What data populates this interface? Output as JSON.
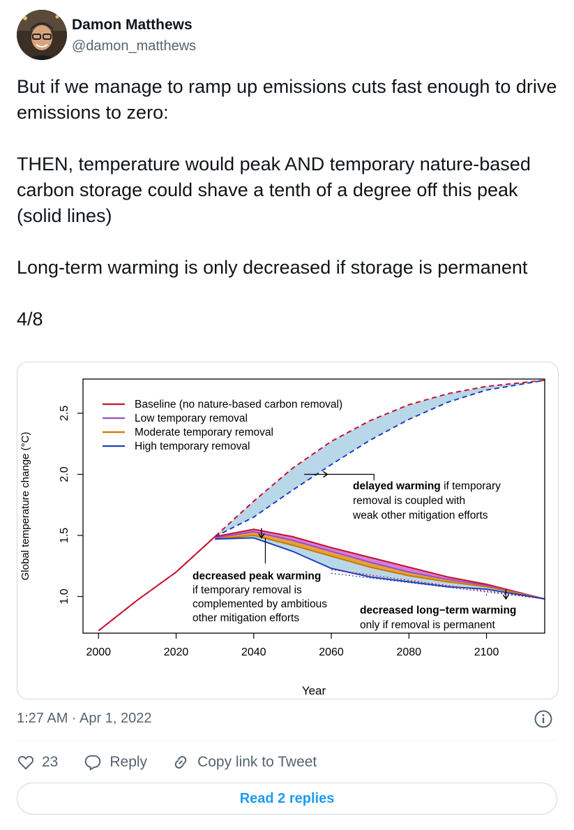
{
  "author": {
    "name": "Damon Matthews",
    "handle": "@damon_matthews"
  },
  "tweet": {
    "text": "But if we manage to ramp up emissions cuts fast enough to drive emissions to zero:\n\nTHEN, temperature would peak AND temporary nature-based carbon storage could shave a tenth of a degree off this peak (solid lines)\n\nLong-term warming is only decreased if storage is permanent\n\n4/8",
    "timestamp": "1:27 AM · Apr 1, 2022"
  },
  "actions": {
    "likes_count": "23",
    "reply_label": "Reply",
    "copy_label": "Copy link to Tweet",
    "read_replies_label": "Read 2 replies"
  },
  "icons": {
    "avatar": "avatar",
    "info": "info-icon",
    "like": "heart-icon",
    "reply": "reply-icon",
    "copy": "link-icon"
  },
  "colors": {
    "accent": "#1d9bf0",
    "baseline": "#c8102e",
    "low": "#9b4dca",
    "moderate": "#cc7a00",
    "high": "#1f3fbf"
  },
  "chart_data": {
    "type": "line",
    "xlabel": "Year",
    "ylabel": "Global temperature change (°C)",
    "xticks": [
      "2000",
      "2020",
      "2040",
      "2060",
      "2080",
      "2100"
    ],
    "yticks": [
      "1.0",
      "1.5",
      "2.0",
      "2.5"
    ],
    "xlim": [
      1996,
      2115
    ],
    "ylim": [
      0.7,
      2.78
    ],
    "legend": [
      {
        "label": "Baseline (no nature-based carbon removal)",
        "color": "#c8102e"
      },
      {
        "label": "Low temporary removal",
        "color": "#9b4dca"
      },
      {
        "label": "Moderate temporary removal",
        "color": "#cc7a00"
      },
      {
        "label": "High temporary removal",
        "color": "#1f3fbf"
      }
    ],
    "series": [
      {
        "name": "Baseline (no nature-based carbon removal)",
        "style": "dashed",
        "x": [
          2000,
          2010,
          2020,
          2030,
          2040,
          2050,
          2060,
          2070,
          2080,
          2090,
          2100,
          2115
        ],
        "y": [
          0.72,
          0.97,
          1.2,
          1.49,
          1.78,
          2.05,
          2.27,
          2.44,
          2.57,
          2.66,
          2.72,
          2.77
        ]
      },
      {
        "name": "High temporary removal",
        "style": "dashed",
        "x": [
          2030,
          2040,
          2050,
          2060,
          2070,
          2080,
          2090,
          2100,
          2115
        ],
        "y": [
          1.49,
          1.65,
          1.87,
          2.08,
          2.28,
          2.45,
          2.59,
          2.69,
          2.77
        ]
      },
      {
        "name": "Baseline (no nature-based carbon removal)",
        "style": "solid",
        "x": [
          2000,
          2010,
          2020,
          2030,
          2040,
          2050,
          2060,
          2070,
          2080,
          2090,
          2100,
          2115
        ],
        "y": [
          0.72,
          0.97,
          1.2,
          1.49,
          1.55,
          1.49,
          1.4,
          1.32,
          1.24,
          1.16,
          1.1,
          0.98
        ]
      },
      {
        "name": "Low temporary removal",
        "style": "solid",
        "x": [
          2030,
          2040,
          2050,
          2060,
          2070,
          2080,
          2090,
          2100,
          2115
        ],
        "y": [
          1.48,
          1.53,
          1.46,
          1.37,
          1.28,
          1.2,
          1.14,
          1.09,
          0.98
        ]
      },
      {
        "name": "Moderate temporary removal",
        "style": "solid",
        "x": [
          2030,
          2040,
          2050,
          2060,
          2070,
          2080,
          2090,
          2100,
          2115
        ],
        "y": [
          1.47,
          1.5,
          1.42,
          1.33,
          1.24,
          1.17,
          1.12,
          1.08,
          0.98
        ]
      },
      {
        "name": "High temporary removal",
        "style": "solid",
        "x": [
          2030,
          2040,
          2050,
          2060,
          2070,
          2080,
          2090,
          2100,
          2115
        ],
        "y": [
          1.47,
          1.48,
          1.37,
          1.23,
          1.16,
          1.12,
          1.08,
          1.06,
          0.98
        ]
      }
    ],
    "annotations": [
      {
        "bold": "delayed warming",
        "text": [
          " if temporary",
          "removal is coupled with",
          "weak other mitigation efforts"
        ]
      },
      {
        "bold": "decreased peak warming",
        "text": [
          "if temporary removal is",
          "complemented by ambitious",
          "other mitigation efforts"
        ]
      },
      {
        "bold": "decreased long−term warming",
        "text": [
          "only if removal is permanent"
        ]
      }
    ]
  }
}
